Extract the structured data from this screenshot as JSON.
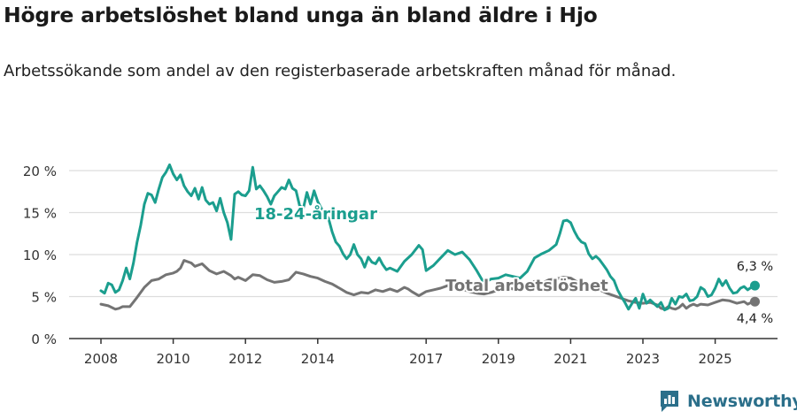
{
  "title": "Högre arbetslöshet bland unga än bland äldre i Hjo",
  "subtitle": "Arbetssökande som andel av den registerbaserade arbetskraften månad för månad.",
  "brand": "Newsworthy",
  "colors": {
    "youth": "#1b9e8e",
    "total": "#747474",
    "grid": "#dddddd",
    "axis": "#333333",
    "brand": "#2b6f8a"
  },
  "chart_data": {
    "type": "line",
    "title": "Högre arbetslöshet bland unga än bland äldre i Hjo",
    "subtitle": "Arbetssökande som andel av den registerbaserade arbetskraften månad för månad.",
    "xlabel": "",
    "ylabel": "",
    "xlim": [
      2008,
      2026.1
    ],
    "ylim": [
      0,
      20
    ],
    "yticks": [
      0,
      5,
      10,
      15,
      20
    ],
    "ytick_labels": [
      "0 %",
      "5 %",
      "10 %",
      "15 %",
      "20 %"
    ],
    "xticks": [
      2008,
      2010,
      2012,
      2014,
      2017,
      2019,
      2021,
      2023,
      2025
    ],
    "xtick_labels": [
      "2008",
      "2010",
      "2012",
      "2014",
      "2017",
      "2019",
      "2021",
      "2023",
      "2025"
    ],
    "grid": true,
    "legend": "inline labels",
    "series": [
      {
        "name": "18-24-åringar",
        "label": "18-24-åringar",
        "color": "#1b9e8e",
        "end_label": "6,3 %",
        "points": [
          [
            2008.0,
            5.7
          ],
          [
            2008.1,
            5.4
          ],
          [
            2008.2,
            6.6
          ],
          [
            2008.3,
            6.4
          ],
          [
            2008.4,
            5.5
          ],
          [
            2008.5,
            5.8
          ],
          [
            2008.6,
            6.9
          ],
          [
            2008.7,
            8.4
          ],
          [
            2008.8,
            7.1
          ],
          [
            2008.9,
            9.0
          ],
          [
            2009.0,
            11.5
          ],
          [
            2009.1,
            13.5
          ],
          [
            2009.2,
            16.0
          ],
          [
            2009.3,
            17.3
          ],
          [
            2009.4,
            17.1
          ],
          [
            2009.5,
            16.2
          ],
          [
            2009.6,
            17.8
          ],
          [
            2009.7,
            19.2
          ],
          [
            2009.8,
            19.8
          ],
          [
            2009.9,
            20.7
          ],
          [
            2010.0,
            19.6
          ],
          [
            2010.1,
            18.9
          ],
          [
            2010.2,
            19.5
          ],
          [
            2010.3,
            18.2
          ],
          [
            2010.4,
            17.5
          ],
          [
            2010.5,
            17.0
          ],
          [
            2010.6,
            17.9
          ],
          [
            2010.7,
            16.6
          ],
          [
            2010.8,
            18.0
          ],
          [
            2010.9,
            16.5
          ],
          [
            2011.0,
            16.0
          ],
          [
            2011.1,
            16.2
          ],
          [
            2011.2,
            15.2
          ],
          [
            2011.3,
            16.7
          ],
          [
            2011.4,
            15.0
          ],
          [
            2011.5,
            13.8
          ],
          [
            2011.6,
            11.8
          ],
          [
            2011.7,
            17.2
          ],
          [
            2011.8,
            17.5
          ],
          [
            2011.9,
            17.1
          ],
          [
            2012.0,
            17.0
          ],
          [
            2012.1,
            17.6
          ],
          [
            2012.2,
            20.4
          ],
          [
            2012.3,
            17.8
          ],
          [
            2012.4,
            18.2
          ],
          [
            2012.5,
            17.6
          ],
          [
            2012.6,
            16.9
          ],
          [
            2012.7,
            16.0
          ],
          [
            2012.8,
            17.0
          ],
          [
            2012.9,
            17.5
          ],
          [
            2013.0,
            18.0
          ],
          [
            2013.1,
            17.8
          ],
          [
            2013.2,
            18.9
          ],
          [
            2013.3,
            17.9
          ],
          [
            2013.4,
            17.6
          ],
          [
            2013.5,
            15.8
          ],
          [
            2013.6,
            15.5
          ],
          [
            2013.7,
            17.4
          ],
          [
            2013.8,
            16.0
          ],
          [
            2013.9,
            17.6
          ],
          [
            2014.0,
            16.3
          ],
          [
            2014.1,
            15.5
          ],
          [
            2014.2,
            14.9
          ],
          [
            2014.3,
            14.3
          ],
          [
            2014.4,
            12.7
          ],
          [
            2014.5,
            11.5
          ],
          [
            2014.6,
            11.0
          ],
          [
            2014.7,
            10.1
          ],
          [
            2014.8,
            9.5
          ],
          [
            2014.9,
            10.0
          ],
          [
            2015.0,
            11.2
          ],
          [
            2015.1,
            10.0
          ],
          [
            2015.2,
            9.5
          ],
          [
            2015.3,
            8.5
          ],
          [
            2015.4,
            9.7
          ],
          [
            2015.5,
            9.1
          ],
          [
            2015.6,
            8.9
          ],
          [
            2015.7,
            9.6
          ],
          [
            2015.8,
            8.8
          ],
          [
            2015.9,
            8.2
          ],
          [
            2016.0,
            8.4
          ],
          [
            2016.2,
            8.0
          ],
          [
            2016.4,
            9.2
          ],
          [
            2016.6,
            10.0
          ],
          [
            2016.8,
            11.1
          ],
          [
            2016.9,
            10.6
          ],
          [
            2017.0,
            8.1
          ],
          [
            2017.2,
            8.7
          ],
          [
            2017.4,
            9.6
          ],
          [
            2017.6,
            10.5
          ],
          [
            2017.8,
            10.0
          ],
          [
            2018.0,
            10.3
          ],
          [
            2018.2,
            9.4
          ],
          [
            2018.4,
            8.1
          ],
          [
            2018.6,
            6.6
          ],
          [
            2018.8,
            7.1
          ],
          [
            2019.0,
            7.2
          ],
          [
            2019.2,
            7.6
          ],
          [
            2019.4,
            7.4
          ],
          [
            2019.6,
            7.2
          ],
          [
            2019.8,
            8.0
          ],
          [
            2020.0,
            9.6
          ],
          [
            2020.2,
            10.1
          ],
          [
            2020.4,
            10.5
          ],
          [
            2020.6,
            11.2
          ],
          [
            2020.7,
            12.5
          ],
          [
            2020.8,
            14.0
          ],
          [
            2020.9,
            14.1
          ],
          [
            2021.0,
            13.8
          ],
          [
            2021.1,
            12.8
          ],
          [
            2021.2,
            12.0
          ],
          [
            2021.3,
            11.5
          ],
          [
            2021.4,
            11.3
          ],
          [
            2021.5,
            10.1
          ],
          [
            2021.6,
            9.5
          ],
          [
            2021.7,
            9.8
          ],
          [
            2021.8,
            9.4
          ],
          [
            2021.9,
            8.8
          ],
          [
            2022.0,
            8.2
          ],
          [
            2022.1,
            7.4
          ],
          [
            2022.2,
            6.9
          ],
          [
            2022.3,
            5.8
          ],
          [
            2022.4,
            5.0
          ],
          [
            2022.5,
            4.3
          ],
          [
            2022.6,
            3.5
          ],
          [
            2022.7,
            4.2
          ],
          [
            2022.8,
            4.8
          ],
          [
            2022.9,
            3.6
          ],
          [
            2023.0,
            5.3
          ],
          [
            2023.1,
            4.2
          ],
          [
            2023.2,
            4.6
          ],
          [
            2023.3,
            4.2
          ],
          [
            2023.4,
            3.8
          ],
          [
            2023.5,
            4.3
          ],
          [
            2023.6,
            3.4
          ],
          [
            2023.7,
            3.6
          ],
          [
            2023.8,
            4.8
          ],
          [
            2023.9,
            4.1
          ],
          [
            2024.0,
            5.0
          ],
          [
            2024.1,
            4.9
          ],
          [
            2024.2,
            5.3
          ],
          [
            2024.3,
            4.5
          ],
          [
            2024.4,
            4.6
          ],
          [
            2024.5,
            5.0
          ],
          [
            2024.6,
            6.1
          ],
          [
            2024.7,
            5.8
          ],
          [
            2024.8,
            5.0
          ],
          [
            2024.9,
            5.2
          ],
          [
            2025.0,
            6.0
          ],
          [
            2025.1,
            7.1
          ],
          [
            2025.2,
            6.3
          ],
          [
            2025.3,
            6.9
          ],
          [
            2025.4,
            6.0
          ],
          [
            2025.5,
            5.4
          ],
          [
            2025.6,
            5.5
          ],
          [
            2025.7,
            6.0
          ],
          [
            2025.8,
            6.2
          ],
          [
            2025.9,
            5.8
          ],
          [
            2026.0,
            6.1
          ],
          [
            2026.1,
            6.3
          ]
        ]
      },
      {
        "name": "Total arbetslöshet",
        "label": "Total arbetslöshet",
        "color": "#747474",
        "end_label": "4,4 %",
        "points": [
          [
            2008.0,
            4.1
          ],
          [
            2008.2,
            3.9
          ],
          [
            2008.4,
            3.5
          ],
          [
            2008.5,
            3.6
          ],
          [
            2008.6,
            3.8
          ],
          [
            2008.8,
            3.8
          ],
          [
            2009.0,
            4.9
          ],
          [
            2009.2,
            6.1
          ],
          [
            2009.4,
            6.9
          ],
          [
            2009.6,
            7.1
          ],
          [
            2009.8,
            7.6
          ],
          [
            2010.0,
            7.8
          ],
          [
            2010.1,
            8.0
          ],
          [
            2010.2,
            8.4
          ],
          [
            2010.3,
            9.3
          ],
          [
            2010.5,
            9.0
          ],
          [
            2010.6,
            8.6
          ],
          [
            2010.8,
            8.9
          ],
          [
            2011.0,
            8.1
          ],
          [
            2011.2,
            7.7
          ],
          [
            2011.4,
            8.0
          ],
          [
            2011.6,
            7.5
          ],
          [
            2011.7,
            7.1
          ],
          [
            2011.8,
            7.3
          ],
          [
            2012.0,
            6.9
          ],
          [
            2012.2,
            7.6
          ],
          [
            2012.4,
            7.5
          ],
          [
            2012.6,
            7.0
          ],
          [
            2012.8,
            6.7
          ],
          [
            2013.0,
            6.8
          ],
          [
            2013.2,
            7.0
          ],
          [
            2013.4,
            7.9
          ],
          [
            2013.6,
            7.7
          ],
          [
            2013.8,
            7.4
          ],
          [
            2014.0,
            7.2
          ],
          [
            2014.2,
            6.8
          ],
          [
            2014.4,
            6.5
          ],
          [
            2014.6,
            6.0
          ],
          [
            2014.8,
            5.5
          ],
          [
            2015.0,
            5.2
          ],
          [
            2015.2,
            5.5
          ],
          [
            2015.4,
            5.4
          ],
          [
            2015.6,
            5.8
          ],
          [
            2015.8,
            5.6
          ],
          [
            2016.0,
            5.9
          ],
          [
            2016.2,
            5.6
          ],
          [
            2016.4,
            6.1
          ],
          [
            2016.5,
            5.9
          ],
          [
            2016.6,
            5.6
          ],
          [
            2016.8,
            5.1
          ],
          [
            2017.0,
            5.6
          ],
          [
            2017.2,
            5.8
          ],
          [
            2017.4,
            6.0
          ],
          [
            2017.6,
            6.3
          ],
          [
            2017.8,
            6.1
          ],
          [
            2018.0,
            5.9
          ],
          [
            2018.2,
            5.6
          ],
          [
            2018.4,
            5.4
          ],
          [
            2018.6,
            5.3
          ],
          [
            2018.8,
            5.5
          ],
          [
            2019.0,
            5.8
          ],
          [
            2019.2,
            6.1
          ],
          [
            2019.4,
            5.9
          ],
          [
            2019.6,
            6.2
          ],
          [
            2019.8,
            6.5
          ],
          [
            2020.0,
            6.8
          ],
          [
            2020.2,
            6.6
          ],
          [
            2020.4,
            7.0
          ],
          [
            2020.6,
            7.1
          ],
          [
            2020.8,
            7.3
          ],
          [
            2021.0,
            7.2
          ],
          [
            2021.2,
            6.7
          ],
          [
            2021.4,
            6.4
          ],
          [
            2021.6,
            6.1
          ],
          [
            2021.8,
            5.8
          ],
          [
            2022.0,
            5.4
          ],
          [
            2022.2,
            5.1
          ],
          [
            2022.4,
            4.8
          ],
          [
            2022.6,
            4.5
          ],
          [
            2022.8,
            4.3
          ],
          [
            2023.0,
            4.2
          ],
          [
            2023.2,
            4.3
          ],
          [
            2023.4,
            4.0
          ],
          [
            2023.5,
            3.6
          ],
          [
            2023.6,
            3.5
          ],
          [
            2023.7,
            3.8
          ],
          [
            2023.8,
            3.6
          ],
          [
            2023.9,
            3.5
          ],
          [
            2024.0,
            3.7
          ],
          [
            2024.1,
            4.1
          ],
          [
            2024.2,
            3.6
          ],
          [
            2024.3,
            3.9
          ],
          [
            2024.4,
            4.1
          ],
          [
            2024.5,
            3.9
          ],
          [
            2024.6,
            4.1
          ],
          [
            2024.8,
            4.0
          ],
          [
            2025.0,
            4.3
          ],
          [
            2025.2,
            4.6
          ],
          [
            2025.4,
            4.5
          ],
          [
            2025.6,
            4.2
          ],
          [
            2025.8,
            4.4
          ],
          [
            2025.9,
            4.1
          ],
          [
            2026.0,
            4.3
          ],
          [
            2026.1,
            4.4
          ]
        ]
      }
    ]
  }
}
